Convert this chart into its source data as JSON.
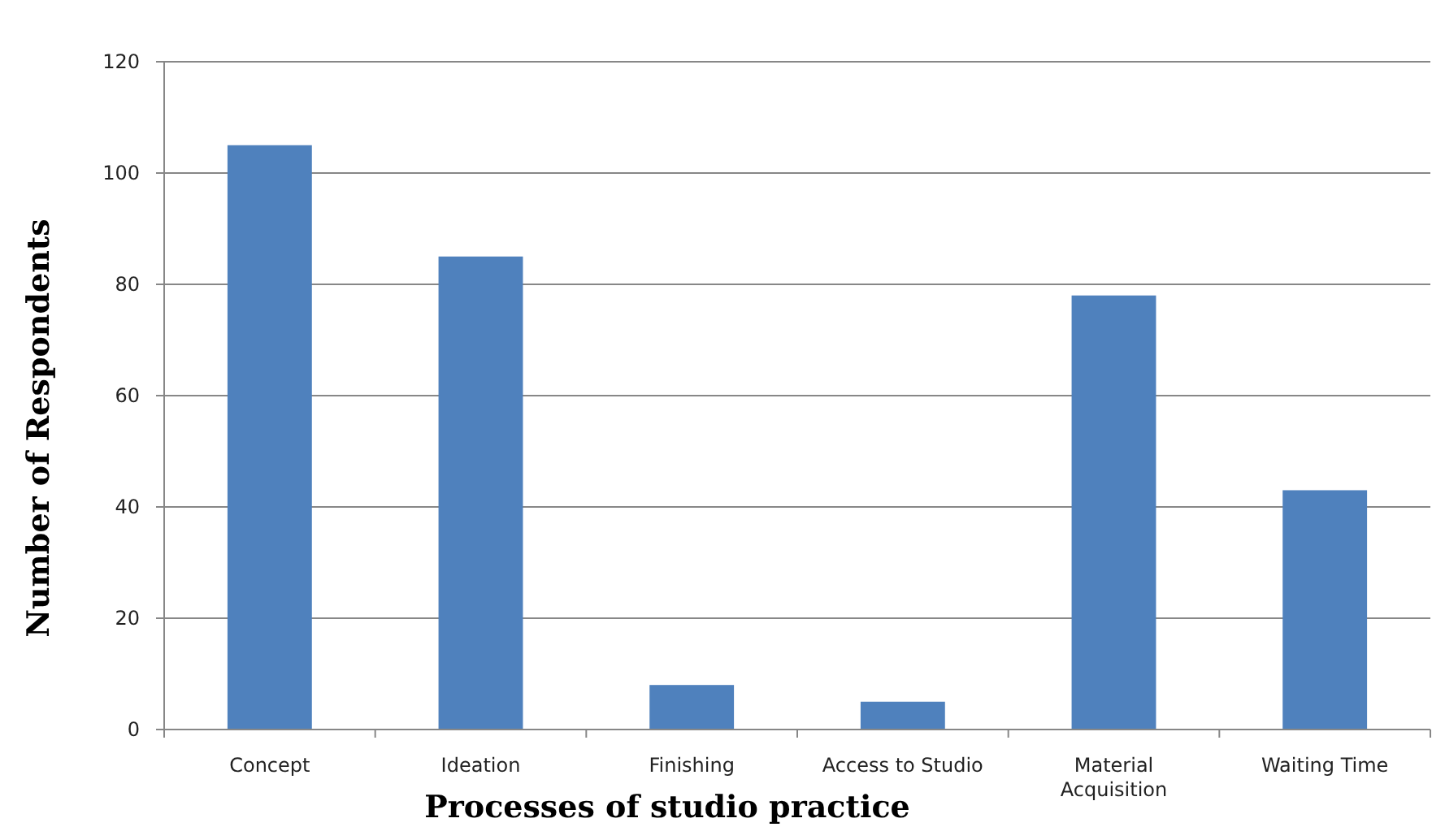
{
  "chart_data": {
    "type": "bar",
    "xlabel": "Processes of studio practice",
    "ylabel": "Number of Respondents",
    "categories": [
      "Concept",
      "Ideation",
      "Finishing",
      "Access to Studio",
      "Material Acquisition",
      "Waiting Time"
    ],
    "values": [
      105,
      85,
      8,
      5,
      78,
      43
    ],
    "color": "#4f81bd",
    "ylim": [
      0,
      120
    ],
    "yticks": [
      0,
      20,
      40,
      60,
      80,
      100,
      120
    ],
    "grid": "y"
  }
}
